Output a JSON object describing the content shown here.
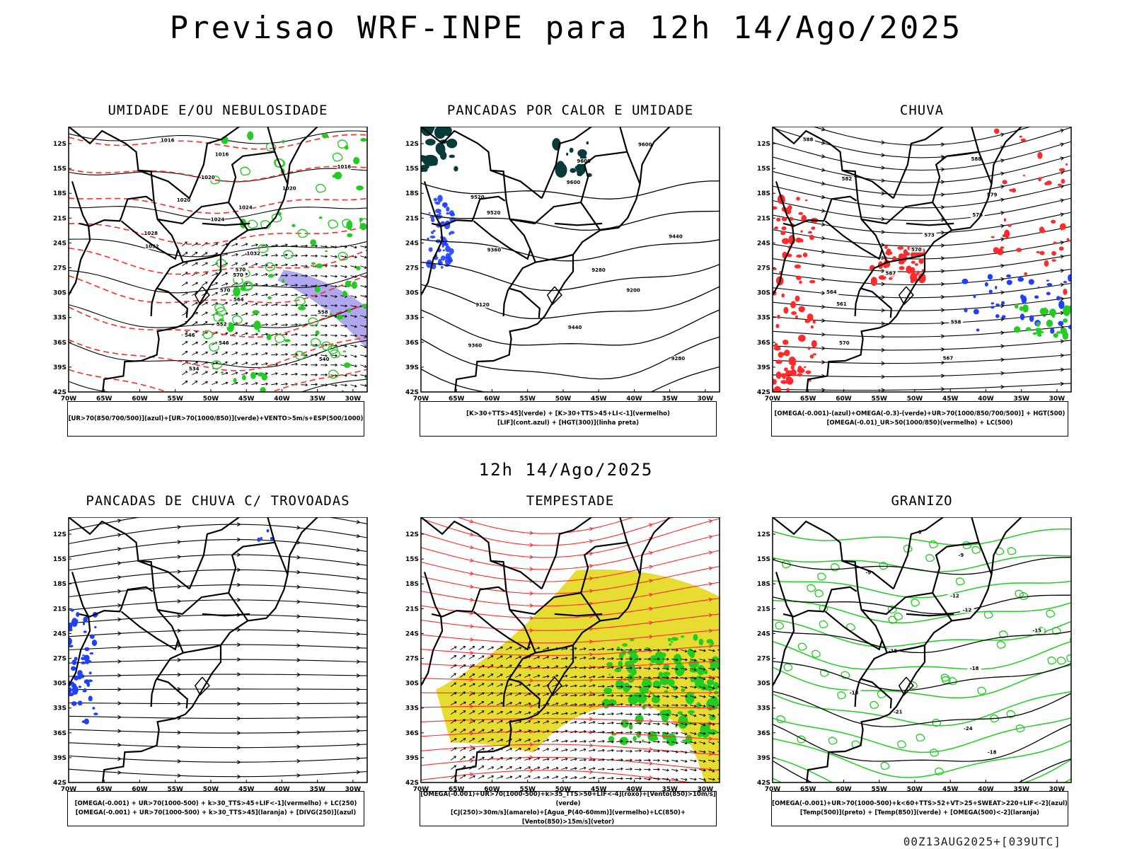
{
  "title": "Previsao WRF-INPE  para 12h 14/Ago/2025",
  "subtitle": "12h 14/Ago/2025",
  "footer": "00Z13AUG2025+[039UTC]",
  "colors": {
    "black": "#000000",
    "red": "#ff2a2a",
    "green": "#22cc22",
    "blue": "#2040ff",
    "dark_teal": "#0a3a3a",
    "yellow": "#e6dc32",
    "lavender": "#b0a8ee",
    "light_gray": "#dddddd"
  },
  "axes": {
    "xticks": [
      "70W",
      "65W",
      "60W",
      "55W",
      "50W",
      "45W",
      "40W",
      "35W",
      "30W"
    ],
    "yticks": [
      "12S",
      "15S",
      "18S",
      "21S",
      "24S",
      "27S",
      "30S",
      "33S",
      "36S",
      "39S",
      "42S"
    ]
  },
  "chart_data": [
    {
      "type": "map",
      "title": "UMIDADE E/OU NEBULOSIDADE",
      "legend": [
        "[UR>70(850/700/500)](azul)+[UR>70(1000/850)](verde)+VENTO>5m/s+ESP(500/1000)"
      ],
      "contour_labels": [
        "1016",
        "1016",
        "1016",
        "1020",
        "1020",
        "1020",
        "1024",
        "1024",
        "1028",
        "1032",
        "1032",
        "570",
        "570",
        "570",
        "564",
        "558",
        "552",
        "546",
        "546",
        "540",
        "534"
      ]
    },
    {
      "type": "map",
      "title": "PANCADAS POR CALOR E UMIDADE",
      "legend": [
        "[K>30+TTS>45](verde) + [K>30+TTS>45+LI<-1](vermelho)",
        "[LIF](cont.azul) + [HGT(300)](linha preta)"
      ],
      "contour_labels": [
        "9600",
        "9600",
        "9600",
        "9520",
        "9520",
        "9440",
        "9360",
        "9280",
        "9200",
        "9120",
        "9440",
        "9360",
        "9280"
      ]
    },
    {
      "type": "map",
      "title": "CHUVA",
      "legend": [
        "[OMEGA(-0.001)-(azul)+OMEGA(-0.3)-(verde)+UR>70(1000/850/700/500)] + HGT(500)",
        "[OMEGA(-0.01)_UR>50(1000/850)(vermelho) + LC(500)"
      ],
      "contour_labels": [
        "588",
        "588",
        "582",
        "579",
        "576",
        "573",
        "570",
        "567",
        "564",
        "561",
        "558",
        "570",
        "567"
      ]
    },
    {
      "type": "map",
      "title": "PANCADAS DE CHUVA C/ TROVOADAS",
      "legend": [
        "[OMEGA(-0.001) + UR>70(1000-500) + k>30_TTS>45+LIF<-1](vermelho) + LC(250)",
        "[OMEGA(-0.001) + UR>70(1000-500) + k>30_TTS>45](laranja) + [DIVG(250)](azul)"
      ],
      "contour_labels": []
    },
    {
      "type": "map",
      "title": "TEMPESTADE",
      "legend": [
        "[OMEGA(-0.001)+UR>70(1000-500)+k>35_TTS>50+LIF<-4](roxo)+[Vento(850)>10m/s](verde)",
        "[CJ(250)>30m/s](amarelo)+[Agua_P(40-60mm)](vermelho)+LC(850)+[Vento(850)>15m/s](vetor)"
      ],
      "contour_labels": []
    },
    {
      "type": "map",
      "title": "GRANIZO",
      "legend": [
        "[OMEGA(-0.001)+UR>70(1000-500)+k<60+TTS>52+VT>25+SWEAT>220+LIF<-2](azul)",
        "[Temp(500)](preto) + [Temp(850)](verde) + [OMEGA(500)<-2](laranja)"
      ],
      "contour_labels": [
        "-6",
        "-9",
        "-9",
        "-12",
        "-12",
        "-15",
        "-15",
        "-18",
        "-18",
        "-21",
        "-24",
        "-18"
      ]
    }
  ]
}
